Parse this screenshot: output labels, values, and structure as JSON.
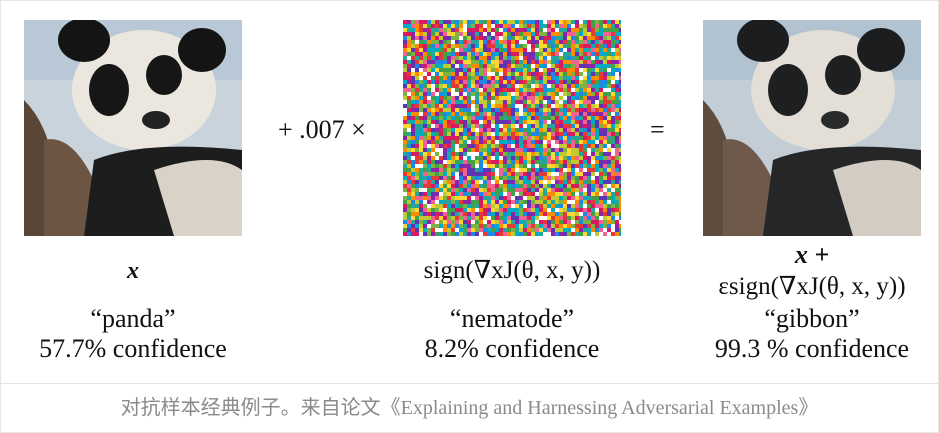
{
  "figure": {
    "left": {
      "symbol": "x",
      "label": "“panda”",
      "confidence": "57.7% confidence"
    },
    "operator_plus": "+ .007 ×",
    "middle": {
      "formula": "sign(∇xJ(θ, x, y))",
      "label": "“nematode”",
      "confidence": "8.2% confidence"
    },
    "operator_equals": "=",
    "right": {
      "formula_line1": "x +",
      "formula_line2": "εsign(∇xJ(θ, x, y))",
      "label": "“gibbon”",
      "confidence": "99.3 % confidence"
    }
  },
  "caption": "对抗样本经典例子。来自论文《Explaining and Harnessing Adversarial Examples》"
}
